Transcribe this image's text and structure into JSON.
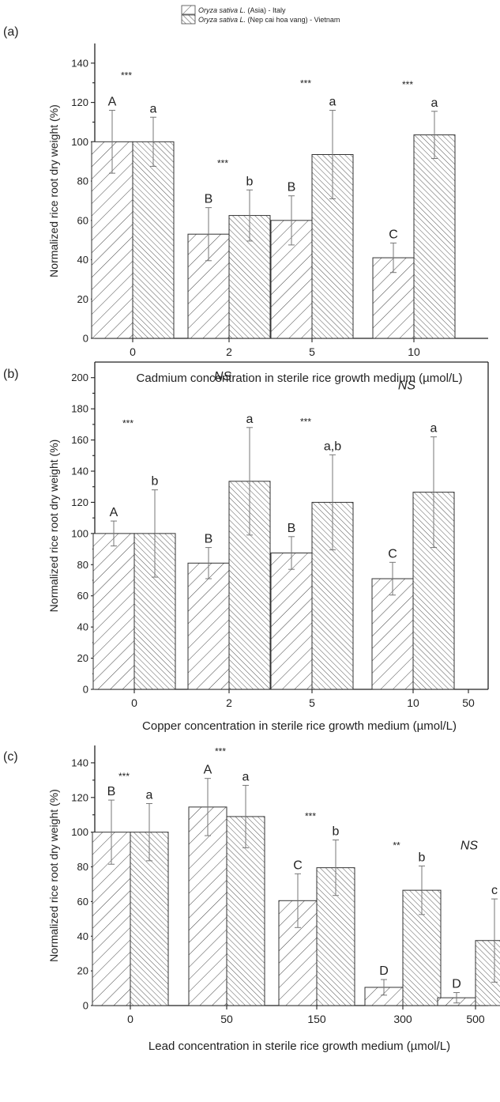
{
  "legend": {
    "entries": [
      {
        "species": "Oryza sativa L.",
        "rest": " (Asia) - Italy",
        "pattern": "hatch-a"
      },
      {
        "species": "Oryza sativa L.",
        "rest": " (Nep cai hoa vang) - Vietnam",
        "pattern": "hatch-b"
      }
    ]
  },
  "chart_data": [
    {
      "type": "bar",
      "panel_label": "(a)",
      "categories": [
        "0",
        "2",
        "5",
        "10"
      ],
      "xlabel": "Cadmium concentration in sterile rice growth medium (µmol/L)",
      "ylabel": "Normalized rice root dry weight (%)",
      "ylim": [
        0,
        150
      ],
      "yticks": [
        0,
        20,
        40,
        60,
        80,
        100,
        120,
        140
      ],
      "series": [
        {
          "values": [
            100,
            53,
            60,
            41
          ],
          "errors": [
            16,
            13.5,
            12.5,
            7.5
          ],
          "letters": [
            "A",
            "B",
            "B",
            "C"
          ]
        },
        {
          "values": [
            100,
            62.5,
            93.5,
            103.5
          ],
          "errors": [
            12.5,
            13,
            22.5,
            12
          ],
          "letters": [
            "a",
            "b",
            "a",
            "a"
          ]
        }
      ],
      "significance": [
        "***",
        "***",
        "***",
        "***"
      ]
    },
    {
      "type": "bar",
      "panel_label": "(b)",
      "categories": [
        "0",
        "2",
        "5",
        "10",
        "50"
      ],
      "xlabel": "Copper concentration in sterile rice growth medium (µmol/L)",
      "ylabel": "Normalized rice root dry weight (%)",
      "ylim": [
        0,
        210
      ],
      "yticks": [
        0,
        20,
        40,
        60,
        80,
        100,
        120,
        140,
        160,
        180,
        200
      ],
      "series": [
        {
          "values": [
            100,
            81,
            87.5,
            71,
            null
          ],
          "errors": [
            8,
            10,
            10.5,
            10.5,
            null
          ],
          "letters": [
            "A",
            "B",
            "B",
            "C",
            ""
          ]
        },
        {
          "values": [
            100,
            133.5,
            120,
            126.5,
            null
          ],
          "errors": [
            28,
            34.5,
            30.5,
            35.5,
            null
          ],
          "letters": [
            "b",
            "a",
            "a,b",
            "a",
            ""
          ]
        }
      ],
      "significance": [
        "***",
        "NS",
        "***",
        "NS",
        ""
      ]
    },
    {
      "type": "bar",
      "panel_label": "(c)",
      "categories": [
        "0",
        "50",
        "150",
        "300",
        "500"
      ],
      "xlabel": "Lead concentration in sterile rice growth medium (µmol/L)",
      "ylabel": "Normalized rice root dry weight (%)",
      "ylim": [
        0,
        150
      ],
      "yticks": [
        0,
        20,
        40,
        60,
        80,
        100,
        120,
        140
      ],
      "series": [
        {
          "values": [
            100,
            114.5,
            60.5,
            10.5,
            4.5
          ],
          "errors": [
            18.5,
            16.5,
            15.5,
            4.5,
            3
          ],
          "letters": [
            "B",
            "A",
            "C",
            "D",
            "D"
          ]
        },
        {
          "values": [
            100,
            109,
            79.5,
            66.5,
            37.5
          ],
          "errors": [
            16.5,
            18,
            16,
            14,
            24
          ],
          "letters": [
            "a",
            "a",
            "b",
            "b",
            "c"
          ]
        }
      ],
      "significance": [
        "***",
        "***",
        "***",
        "**",
        "NS"
      ]
    }
  ]
}
